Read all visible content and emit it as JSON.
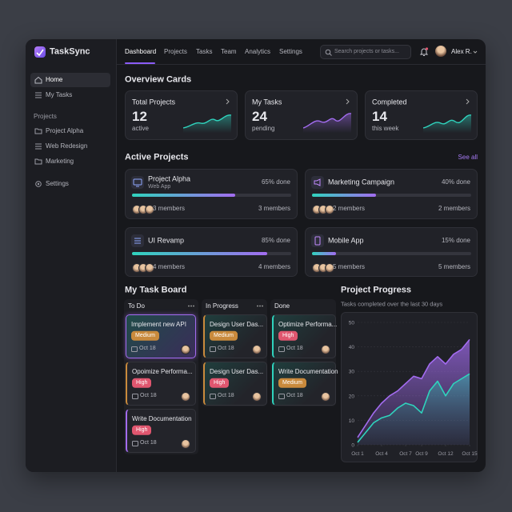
{
  "brand": "TaskSync",
  "nav": [
    "Dashboard",
    "Projects",
    "Tasks",
    "Team",
    "Analytics",
    "Settings"
  ],
  "search_placeholder": "Search projects or tasks...",
  "user": "Alex R.",
  "sidebar": {
    "items": [
      "Home",
      "My Tasks"
    ],
    "projects_heading": "Projects",
    "projects": [
      "Project Alpha",
      "Web Redesign",
      "Marketing"
    ],
    "settings": "Settings"
  },
  "overview": {
    "title": "Overview Cards",
    "cards": [
      {
        "title": "Total Projects",
        "value": 12,
        "caption": "active"
      },
      {
        "title": "My Tasks",
        "value": 24,
        "caption": "pending"
      },
      {
        "title": "Completed",
        "value": 14,
        "caption": "this week"
      }
    ]
  },
  "active_projects": {
    "title": "Active Projects",
    "see_all": "See all",
    "projects": [
      {
        "name": "Project Alpha",
        "subtitle": "Web App",
        "progress": 65,
        "progress_label": "65% done",
        "members": "3 members"
      },
      {
        "name": "Marketing Campaign",
        "progress": 40,
        "progress_label": "40% done",
        "members": "2 members"
      },
      {
        "name": "UI Revamp",
        "progress": 85,
        "progress_label": "85% done",
        "members": "4 members"
      },
      {
        "name": "Mobile App",
        "progress": 15,
        "progress_label": "15% done",
        "members": "5 members"
      }
    ]
  },
  "task_board": {
    "title": "My Task Board",
    "columns": [
      {
        "name": "To Do",
        "cards": [
          {
            "title": "Implement new API",
            "tag": "Medium",
            "tag_color": "#c98a3c",
            "date": "Oct 18"
          },
          {
            "title": "Opoimize Performa...",
            "tag": "High",
            "tag_color": "#e0566f",
            "date": "Oct 18"
          },
          {
            "title": "Write Documentation",
            "tag": "High",
            "tag_color": "#e0566f",
            "date": "Oct 18"
          }
        ]
      },
      {
        "name": "In Progress",
        "cards": [
          {
            "title": "Design User Das...",
            "tag": "Medium",
            "tag_color": "#c98a3c",
            "date": "Oct 18"
          },
          {
            "title": "Design User Das...",
            "tag": "High",
            "tag_color": "#e0566f",
            "date": "Oct 18"
          }
        ]
      },
      {
        "name": "Done",
        "cards": [
          {
            "title": "Optimize Performa...",
            "tag": "High",
            "tag_color": "#e0566f",
            "date": "Oct 18"
          },
          {
            "title": "Write Documentation",
            "tag": "Medium",
            "tag_color": "#c98a3c",
            "date": "Oct 18"
          }
        ]
      }
    ]
  },
  "chart_data": {
    "type": "area",
    "title": "Project Progress",
    "subtitle": "Tasks completed over the last 30 days",
    "x": [
      1,
      2,
      3,
      4,
      5,
      6,
      7,
      8,
      9,
      10,
      11,
      12,
      13,
      14,
      15
    ],
    "xlim": [
      1,
      15
    ],
    "xticks": [
      {
        "value": 1,
        "label": "Oct 1"
      },
      {
        "value": 4,
        "label": "Oct 4"
      },
      {
        "value": 7,
        "label": "Oct 7"
      },
      {
        "value": 9,
        "label": "Oct 9"
      },
      {
        "value": 12,
        "label": "Oct 12"
      },
      {
        "value": 15,
        "label": "Oct 15"
      }
    ],
    "ylim": [
      0,
      50
    ],
    "yticks": [
      0,
      10,
      20,
      30,
      40,
      50
    ],
    "grid": true,
    "series": [
      {
        "color": "#a36cf0",
        "values": [
          3,
          8,
          13,
          17,
          20,
          22,
          25,
          28,
          27,
          33,
          36,
          33,
          37,
          39,
          43
        ]
      },
      {
        "color": "#2fd3bd",
        "values": [
          1,
          5,
          9,
          11,
          12,
          15,
          17,
          16,
          13,
          22,
          26,
          20,
          25,
          27,
          29
        ]
      }
    ]
  }
}
